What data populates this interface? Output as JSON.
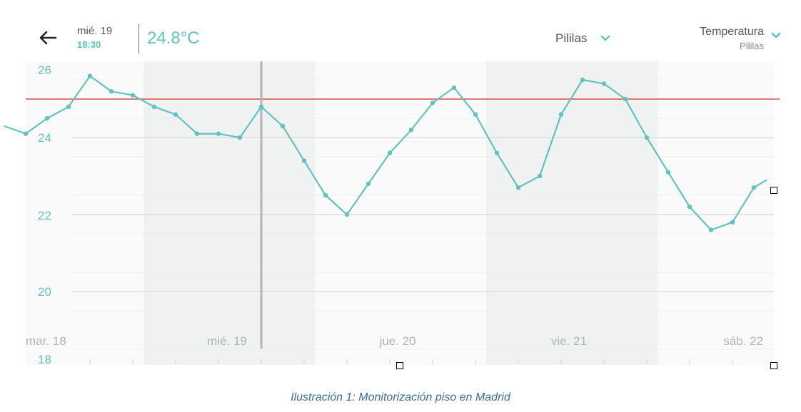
{
  "header": {
    "date_line1": "mié. 19",
    "date_line2": "18:30",
    "current_value": "24.8°C",
    "location_label": "Pililas",
    "metric_label": "Temperatura",
    "metric_sublabel": "Pililas"
  },
  "icons": {
    "back": "arrow-left-icon",
    "dropdown": "chevron-down-icon"
  },
  "colors": {
    "accent": "#5fc3c0",
    "threshold": "#d22a2a",
    "selection_line": "#b5b5b5",
    "day_band": "#f0f1f1"
  },
  "caption": "Ilustración 1: Monitorización piso en Madrid",
  "chart_data": {
    "type": "line",
    "title": "",
    "xlabel": "",
    "ylabel": "",
    "y_ticks": [
      "26",
      "24",
      "22",
      "20",
      "18"
    ],
    "ylim": [
      18,
      26.2
    ],
    "x_day_labels": [
      "mar. 18",
      "mié. 19",
      "jue. 20",
      "vie. 21",
      "sáb. 22"
    ],
    "x_day_positions": [
      0.5,
      4.5,
      8.5,
      12.5,
      16.5
    ],
    "shaded_days": [
      [
        2.75,
        6.75
      ],
      [
        10.75,
        14.75
      ]
    ],
    "threshold": 25.0,
    "selected_x": 5.5,
    "series": [
      {
        "values": [
          [
            -0.5,
            24.3
          ],
          [
            0.0,
            24.1
          ],
          [
            0.5,
            24.5
          ],
          [
            1.0,
            24.8
          ],
          [
            1.5,
            25.6
          ],
          [
            2.0,
            25.2
          ],
          [
            2.5,
            25.1
          ],
          [
            3.0,
            24.8
          ],
          [
            3.5,
            24.6
          ],
          [
            4.0,
            24.1
          ],
          [
            4.5,
            24.1
          ],
          [
            5.0,
            24.0
          ],
          [
            5.5,
            24.8
          ],
          [
            6.0,
            24.3
          ],
          [
            6.5,
            23.4
          ],
          [
            7.0,
            22.5
          ],
          [
            7.5,
            22.0
          ],
          [
            8.0,
            22.8
          ],
          [
            8.5,
            23.6
          ],
          [
            9.0,
            24.2
          ],
          [
            9.5,
            24.9
          ],
          [
            10.0,
            25.3
          ],
          [
            10.5,
            24.6
          ],
          [
            11.0,
            23.6
          ],
          [
            11.5,
            22.7
          ],
          [
            12.0,
            23.0
          ],
          [
            12.5,
            24.6
          ],
          [
            13.0,
            25.5
          ],
          [
            13.5,
            25.4
          ],
          [
            14.0,
            25.0
          ],
          [
            14.5,
            24.0
          ],
          [
            15.0,
            23.1
          ],
          [
            15.5,
            22.2
          ],
          [
            16.0,
            21.6
          ],
          [
            16.5,
            21.8
          ],
          [
            17.0,
            22.7
          ],
          [
            17.3,
            22.9
          ]
        ]
      }
    ]
  }
}
